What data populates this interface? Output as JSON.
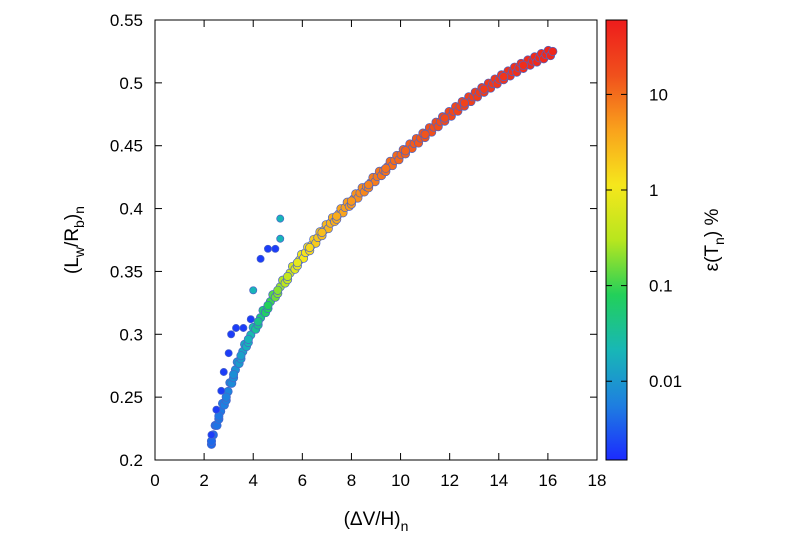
{
  "chart_data": {
    "type": "scatter",
    "title": "",
    "xlabel": "(ΔV/H)",
    "xlabel_sub": "n",
    "ylabel_parts": [
      "(L",
      "w",
      "/R",
      "b",
      ")",
      "n"
    ],
    "xlim": [
      0,
      18
    ],
    "ylim": [
      0.2,
      0.55
    ],
    "x_ticks": [
      0,
      2,
      4,
      6,
      8,
      10,
      12,
      14,
      16,
      18
    ],
    "x_tick_labels": [
      "0",
      "2",
      "4",
      "6",
      "8",
      "10",
      "12",
      "14",
      "16",
      "18"
    ],
    "y_ticks": [
      0.2,
      0.25,
      0.3,
      0.35,
      0.4,
      0.45,
      0.5,
      0.55
    ],
    "y_tick_labels": [
      "0.2",
      "0.25",
      "0.3",
      "0.35",
      "0.4",
      "0.45",
      "0.5",
      "0.55"
    ],
    "grid": false,
    "colorbar": {
      "label": "ε(T",
      "label_sub": "n",
      "label_suffix": ") %",
      "scale": "log",
      "range": [
        0.0015,
        60
      ],
      "ticks": [
        0.01,
        0.1,
        1,
        10
      ],
      "tick_labels": [
        "0.01",
        "0.1",
        "1",
        "10"
      ],
      "colors": [
        "#1c2bff",
        "#1e7fe0",
        "#18b7b6",
        "#22d05a",
        "#b8e61e",
        "#f6e71c",
        "#f9a21c",
        "#f0501c",
        "#ee1c1c"
      ]
    },
    "main_curve": {
      "description": "dense band of points following y ≈ 0.2 + 0.12*(x-2.2)^0.55",
      "x_range": [
        2.2,
        16.2
      ],
      "points": [
        {
          "x": 2.3,
          "y": 0.215,
          "err": 0.004
        },
        {
          "x": 2.6,
          "y": 0.235,
          "err": 0.005
        },
        {
          "x": 2.9,
          "y": 0.25,
          "err": 0.006
        },
        {
          "x": 3.2,
          "y": 0.268,
          "err": 0.008
        },
        {
          "x": 3.5,
          "y": 0.283,
          "err": 0.012
        },
        {
          "x": 3.8,
          "y": 0.296,
          "err": 0.02
        },
        {
          "x": 4.2,
          "y": 0.31,
          "err": 0.04
        },
        {
          "x": 4.6,
          "y": 0.323,
          "err": 0.08
        },
        {
          "x": 5.0,
          "y": 0.335,
          "err": 0.2
        },
        {
          "x": 5.4,
          "y": 0.346,
          "err": 0.4
        },
        {
          "x": 5.8,
          "y": 0.357,
          "err": 0.8
        },
        {
          "x": 6.3,
          "y": 0.369,
          "err": 1.5
        },
        {
          "x": 6.8,
          "y": 0.381,
          "err": 2.5
        },
        {
          "x": 7.4,
          "y": 0.394,
          "err": 3.5
        },
        {
          "x": 8.0,
          "y": 0.406,
          "err": 5
        },
        {
          "x": 8.7,
          "y": 0.419,
          "err": 7
        },
        {
          "x": 9.4,
          "y": 0.432,
          "err": 9
        },
        {
          "x": 10.2,
          "y": 0.446,
          "err": 12
        },
        {
          "x": 11.0,
          "y": 0.459,
          "err": 15
        },
        {
          "x": 11.8,
          "y": 0.472,
          "err": 18
        },
        {
          "x": 12.6,
          "y": 0.484,
          "err": 22
        },
        {
          "x": 13.4,
          "y": 0.495,
          "err": 27
        },
        {
          "x": 14.2,
          "y": 0.505,
          "err": 32
        },
        {
          "x": 15.0,
          "y": 0.514,
          "err": 38
        },
        {
          "x": 16.2,
          "y": 0.525,
          "err": 45
        }
      ]
    },
    "outliers": [
      {
        "x": 2.3,
        "y": 0.22,
        "err": 0.002
      },
      {
        "x": 2.5,
        "y": 0.24,
        "err": 0.002
      },
      {
        "x": 2.7,
        "y": 0.255,
        "err": 0.002
      },
      {
        "x": 2.8,
        "y": 0.27,
        "err": 0.002
      },
      {
        "x": 3.0,
        "y": 0.285,
        "err": 0.002
      },
      {
        "x": 3.1,
        "y": 0.3,
        "err": 0.002
      },
      {
        "x": 3.3,
        "y": 0.305,
        "err": 0.002
      },
      {
        "x": 3.6,
        "y": 0.305,
        "err": 0.002
      },
      {
        "x": 3.9,
        "y": 0.312,
        "err": 0.002
      },
      {
        "x": 4.3,
        "y": 0.36,
        "err": 0.002
      },
      {
        "x": 4.6,
        "y": 0.368,
        "err": 0.002
      },
      {
        "x": 4.9,
        "y": 0.368,
        "err": 0.002
      },
      {
        "x": 4.0,
        "y": 0.335,
        "err": 0.02
      },
      {
        "x": 5.1,
        "y": 0.376,
        "err": 0.02
      },
      {
        "x": 5.1,
        "y": 0.392,
        "err": 0.02
      }
    ]
  }
}
